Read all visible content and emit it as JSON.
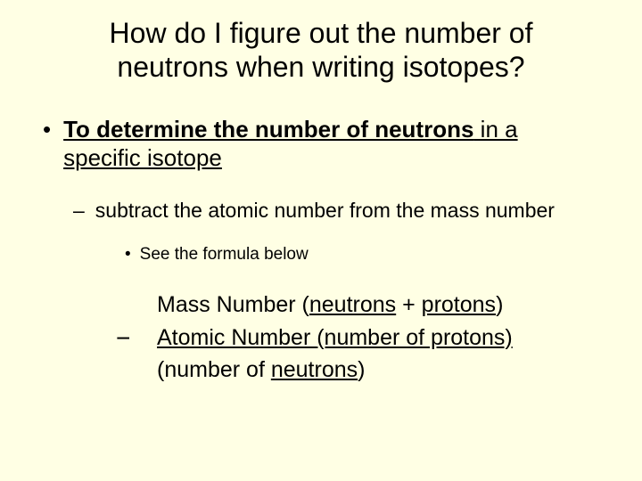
{
  "background_color": "#ffffe4",
  "text_color": "#000000",
  "font_family": "Arial",
  "title": {
    "line1": "How do I figure out the number of",
    "line2": "neutrons when writing isotopes?",
    "fontsize": 32,
    "align": "center"
  },
  "bullets": {
    "level1": {
      "marker": "•",
      "fontsize": 26,
      "bold_underline_part": "To determine the number of neutrons",
      "plain_part_1": " in a",
      "plain_part_2": "specific isotope"
    },
    "level2": {
      "marker": "–",
      "fontsize": 23,
      "text": "subtract the atomic number from the mass number"
    },
    "level3": {
      "marker": "•",
      "fontsize": 19,
      "text": "See the formula below"
    }
  },
  "formula": {
    "minus_sign": "−",
    "fontsize": 25,
    "line1_pre": "Mass Number (",
    "line1_u": "neutrons",
    "line1_mid": " + ",
    "line1_u2": "protons",
    "line1_post": ")",
    "line2_pre": "Atomic Number ",
    "line2_u": "(number of protons)",
    "line3_pre": "(number of ",
    "line3_u": "neutrons",
    "line3_post": ")"
  }
}
